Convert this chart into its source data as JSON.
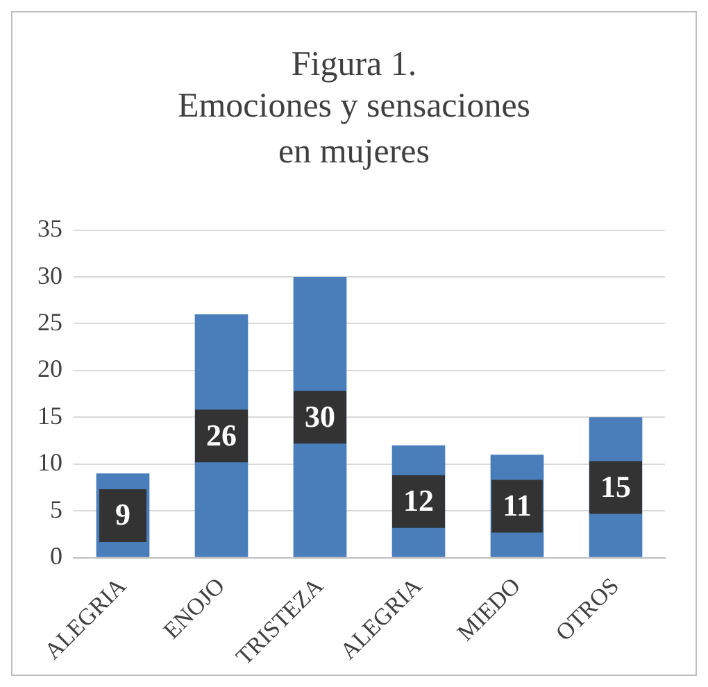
{
  "chart_data": {
    "type": "bar",
    "title": "Figura 1.",
    "subtitle": "Emociones y sensaciones en mujeres",
    "categories": [
      "ALEGRIA",
      "ENOJO",
      "TRISTEZA",
      "ALEGRIA",
      "MIEDO",
      "OTROS"
    ],
    "values": [
      9,
      26,
      30,
      12,
      11,
      15
    ],
    "color": "#4a7ebb",
    "ylim": [
      0,
      35
    ],
    "yticks": [
      0,
      5,
      10,
      15,
      20,
      25,
      30,
      35
    ],
    "grid": "y",
    "data_labels": true
  }
}
